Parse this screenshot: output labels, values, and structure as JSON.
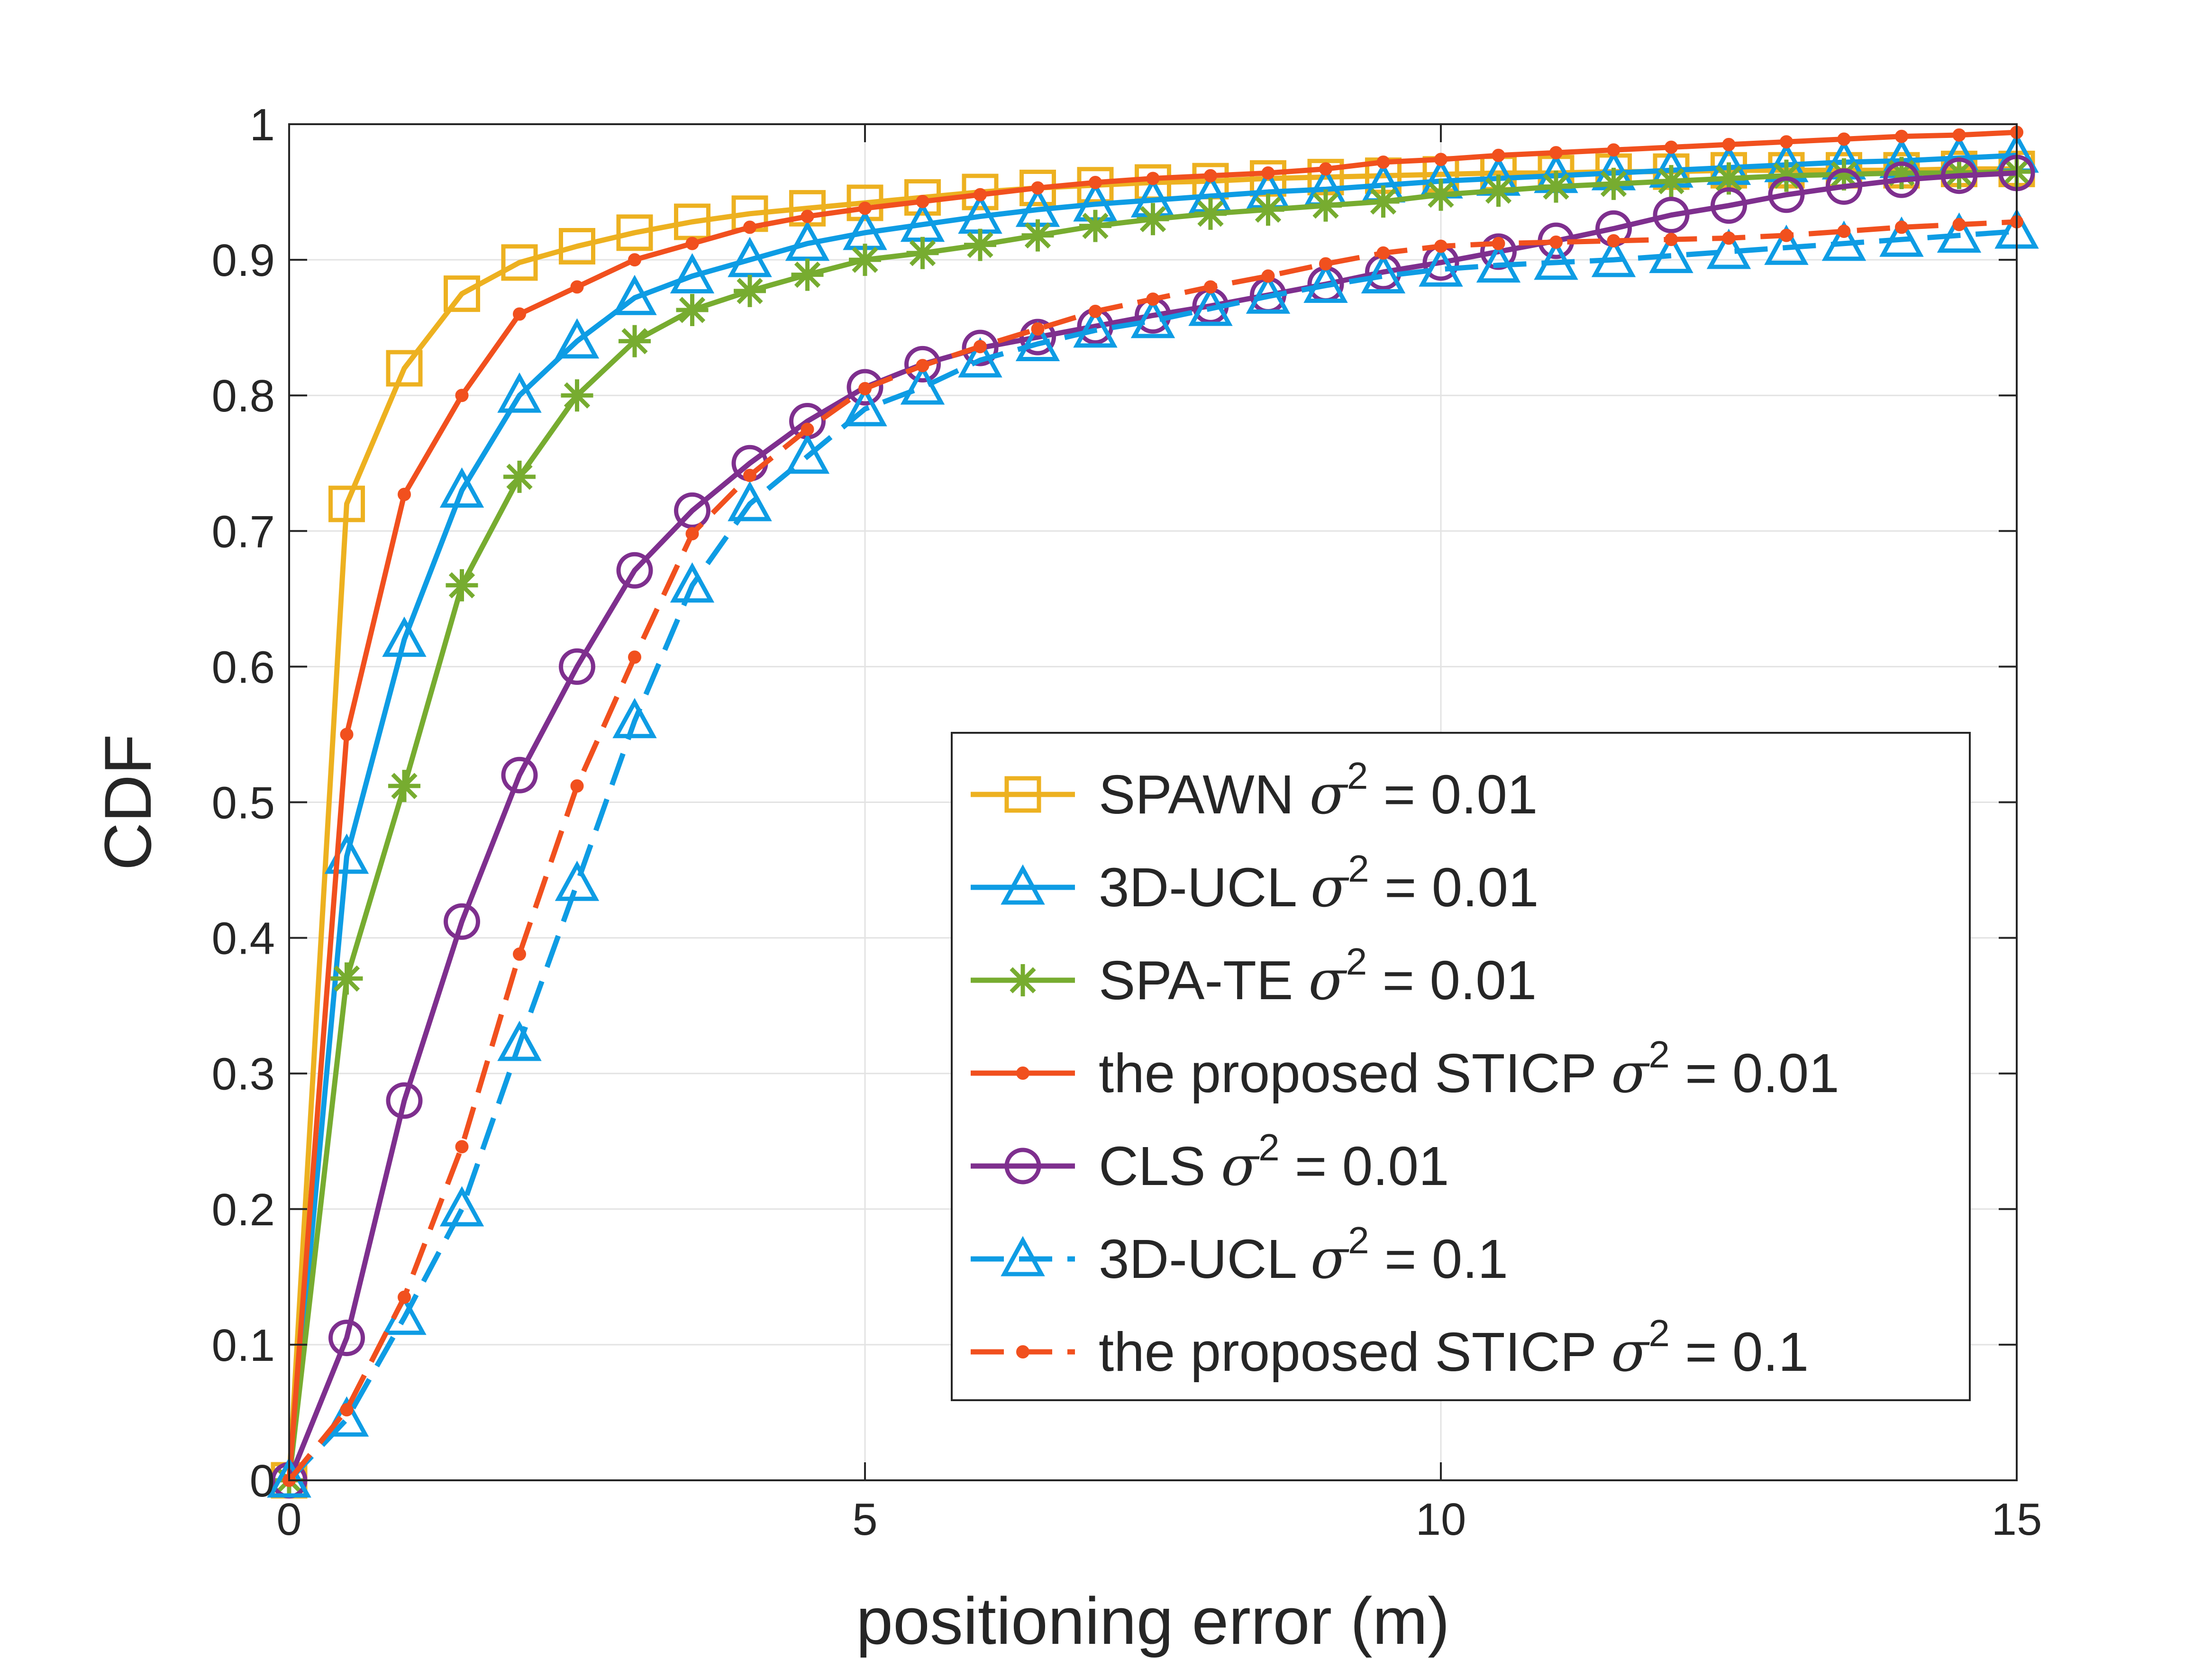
{
  "chart_data": {
    "type": "line",
    "title": "",
    "xlabel": "positioning error (m)",
    "ylabel": "CDF",
    "xlim": [
      0,
      15
    ],
    "ylim": [
      0,
      1
    ],
    "grid": true,
    "legend_position": "bottom-right",
    "x_ticks": [
      "0",
      "5",
      "10",
      "15"
    ],
    "y_ticks": [
      "0",
      "0.1",
      "0.2",
      "0.3",
      "0.4",
      "0.5",
      "0.6",
      "0.7",
      "0.8",
      "0.9",
      "1"
    ],
    "x": [
      0,
      0.5,
      1,
      1.5,
      2,
      2.5,
      3,
      3.5,
      4,
      4.5,
      5,
      5.5,
      6,
      6.5,
      7,
      7.5,
      8,
      8.5,
      9,
      9.5,
      10,
      10.5,
      11,
      11.5,
      12,
      12.5,
      13,
      13.5,
      14,
      14.5,
      15
    ],
    "series": [
      {
        "name": "SPAWN",
        "legend": {
          "prefix": "SPAWN ",
          "sup": "2",
          "suffix": " = 0.01"
        },
        "color": "#EDB120",
        "marker": "square",
        "dashed": false,
        "values": [
          0,
          0.72,
          0.82,
          0.875,
          0.898,
          0.91,
          0.92,
          0.928,
          0.934,
          0.938,
          0.942,
          0.946,
          0.95,
          0.953,
          0.955,
          0.957,
          0.958,
          0.96,
          0.961,
          0.962,
          0.963,
          0.964,
          0.964,
          0.965,
          0.965,
          0.966,
          0.966,
          0.966,
          0.966,
          0.967,
          0.967
        ]
      },
      {
        "name": "3D-UCL 0.01",
        "legend": {
          "prefix": "3D-UCL ",
          "sup": "2",
          "suffix": " = 0.01"
        },
        "color": "#0E9CE4",
        "marker": "triangle",
        "dashed": false,
        "values": [
          0,
          0.46,
          0.62,
          0.73,
          0.8,
          0.84,
          0.872,
          0.888,
          0.9,
          0.912,
          0.92,
          0.926,
          0.932,
          0.937,
          0.941,
          0.944,
          0.947,
          0.95,
          0.952,
          0.955,
          0.958,
          0.96,
          0.962,
          0.964,
          0.966,
          0.968,
          0.97,
          0.972,
          0.973,
          0.975,
          0.977
        ]
      },
      {
        "name": "SPA-TE",
        "legend": {
          "prefix": "SPA-TE ",
          "sup": "2",
          "suffix": " = 0.01"
        },
        "color": "#77AC30",
        "marker": "asterisk",
        "dashed": false,
        "values": [
          0,
          0.37,
          0.512,
          0.66,
          0.74,
          0.8,
          0.84,
          0.863,
          0.877,
          0.889,
          0.9,
          0.905,
          0.911,
          0.918,
          0.925,
          0.93,
          0.934,
          0.937,
          0.94,
          0.943,
          0.948,
          0.951,
          0.954,
          0.956,
          0.958,
          0.96,
          0.962,
          0.963,
          0.964,
          0.964,
          0.965
        ]
      },
      {
        "name": "STICP 0.01",
        "legend": {
          "prefix": "the proposed STICP ",
          "sup": "2",
          "suffix": " = 0.01"
        },
        "color": "#F1501E",
        "marker": "dot",
        "dashed": false,
        "values": [
          0,
          0.55,
          0.727,
          0.8,
          0.86,
          0.88,
          0.9,
          0.912,
          0.924,
          0.932,
          0.938,
          0.943,
          0.948,
          0.953,
          0.957,
          0.96,
          0.962,
          0.964,
          0.967,
          0.972,
          0.974,
          0.977,
          0.979,
          0.981,
          0.983,
          0.985,
          0.987,
          0.989,
          0.991,
          0.992,
          0.994
        ]
      },
      {
        "name": "CLS",
        "legend": {
          "prefix": "CLS ",
          "sup": "2",
          "suffix": " = 0.01"
        },
        "color": "#7E2F8E",
        "marker": "circle",
        "dashed": false,
        "values": [
          0,
          0.105,
          0.28,
          0.412,
          0.52,
          0.6,
          0.671,
          0.715,
          0.75,
          0.781,
          0.806,
          0.823,
          0.835,
          0.843,
          0.851,
          0.859,
          0.866,
          0.874,
          0.882,
          0.891,
          0.898,
          0.906,
          0.914,
          0.923,
          0.933,
          0.94,
          0.948,
          0.954,
          0.959,
          0.962,
          0.964
        ]
      },
      {
        "name": "3D-UCL 0.1",
        "legend": {
          "prefix": "3D-UCL ",
          "sup": "2",
          "suffix": " = 0.1"
        },
        "color": "#0E9CE4",
        "marker": "triangle",
        "dashed": true,
        "values": [
          0,
          0.045,
          0.12,
          0.2,
          0.322,
          0.44,
          0.56,
          0.66,
          0.72,
          0.755,
          0.79,
          0.806,
          0.826,
          0.838,
          0.848,
          0.855,
          0.864,
          0.873,
          0.881,
          0.888,
          0.893,
          0.896,
          0.898,
          0.9,
          0.903,
          0.906,
          0.909,
          0.912,
          0.915,
          0.918,
          0.921
        ]
      },
      {
        "name": "STICP 0.1",
        "legend": {
          "prefix": "the proposed STICP ",
          "sup": "2",
          "suffix": " = 0.1"
        },
        "color": "#F1501E",
        "marker": "dot",
        "dashed": true,
        "values": [
          0,
          0.052,
          0.135,
          0.246,
          0.388,
          0.512,
          0.607,
          0.698,
          0.741,
          0.775,
          0.805,
          0.822,
          0.836,
          0.849,
          0.862,
          0.871,
          0.88,
          0.888,
          0.897,
          0.905,
          0.91,
          0.912,
          0.913,
          0.914,
          0.915,
          0.916,
          0.918,
          0.921,
          0.924,
          0.926,
          0.928
        ]
      }
    ]
  }
}
